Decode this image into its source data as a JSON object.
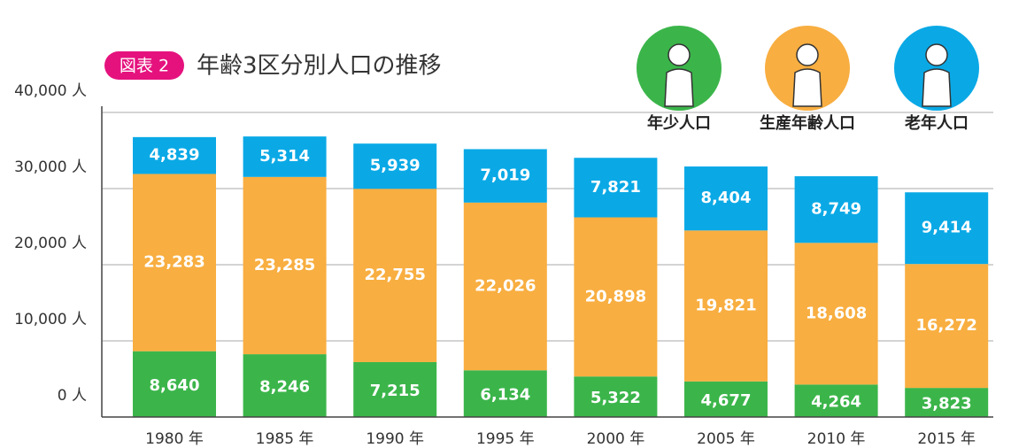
{
  "chart_data": {
    "type": "bar",
    "stacked": true,
    "figure_label": "図表 2",
    "title": "年齢3区分別人口の推移",
    "categories": [
      "1980 年",
      "1985 年",
      "1990 年",
      "1995 年",
      "2000 年",
      "2005 年",
      "2010 年",
      "2015 年"
    ],
    "series": [
      {
        "name": "年少人口",
        "color": "#3bb54a",
        "values": [
          8640,
          8246,
          7215,
          6134,
          5322,
          4677,
          4264,
          3823
        ],
        "value_labels": [
          "8,640",
          "8,246",
          "7,215",
          "6,134",
          "5,322",
          "4,677",
          "4,264",
          "3,823"
        ]
      },
      {
        "name": "生産年齢人口",
        "color": "#f8ae40",
        "values": [
          23283,
          23285,
          22755,
          22026,
          20898,
          19821,
          18608,
          16272
        ],
        "value_labels": [
          "23,283",
          "23,285",
          "22,755",
          "22,026",
          "20,898",
          "19,821",
          "18,608",
          "16,272"
        ]
      },
      {
        "name": "老年人口",
        "color": "#0aa9e6",
        "values": [
          4839,
          5314,
          5939,
          7019,
          7821,
          8404,
          8749,
          9414
        ],
        "value_labels": [
          "4,839",
          "5,314",
          "5,939",
          "7,019",
          "7,821",
          "8,404",
          "8,749",
          "9,414"
        ]
      }
    ],
    "ylim": [
      0,
      40000
    ],
    "yticks": [
      {
        "value": 0,
        "label": "0 人"
      },
      {
        "value": 10000,
        "label": "10,000 人"
      },
      {
        "value": 20000,
        "label": "20,000 人"
      },
      {
        "value": 30000,
        "label": "30,000 人"
      },
      {
        "value": 40000,
        "label": "40,000 人"
      }
    ],
    "grid": true
  }
}
